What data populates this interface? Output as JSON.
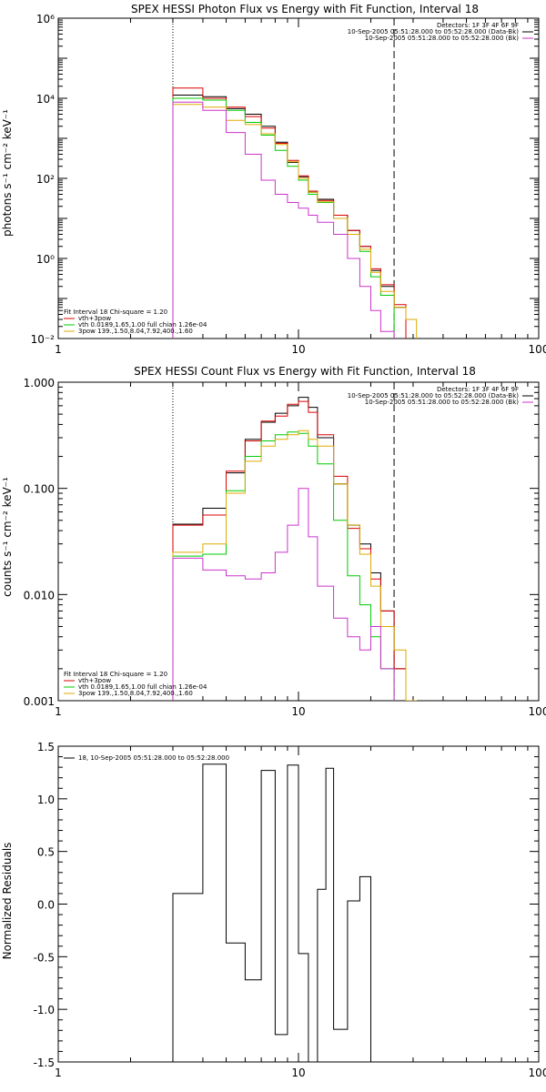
{
  "chart_data": [
    {
      "type": "line",
      "title": "SPEX HESSI Photon Flux vs Energy with Fit Function, Interval 18",
      "ylabel": "photons s⁻¹ cm⁻² keV⁻¹",
      "xlabel": "",
      "xscale": "log",
      "yscale": "log",
      "xlim": [
        1,
        100
      ],
      "ylim": [
        0.01,
        1000000
      ],
      "xticks": [
        {
          "v": 1,
          "t": "1"
        },
        {
          "v": 10,
          "t": "10"
        },
        {
          "v": 100,
          "t": "100"
        }
      ],
      "yticks": [
        {
          "v": 0.01,
          "t": "10⁻²"
        },
        {
          "v": 1,
          "t": "10⁰"
        },
        {
          "v": 100,
          "t": "10²"
        },
        {
          "v": 10000,
          "t": "10⁴"
        },
        {
          "v": 1000000,
          "t": "10⁶"
        }
      ],
      "header_lines": [
        "Detectors: 1F 3F 4F 6F 9F",
        "10-Sep-2005 05:51:28.000 to 05:52:28.000 (Data-Bk)",
        "10-Sep-2005 05:51:28.000 to 05:52:28.000 (Bk)"
      ],
      "header_colors": [
        "",
        "#000000",
        "#cc33cc"
      ],
      "legend": {
        "lines": [
          "Fit Interval 18   Chi-square = 1.20",
          "vth+3pow",
          "vth 0.0189,1.65,1.00  full chian 1.26e-04",
          "3pow 139.,1.50,8.04,7.92,400.,1.60"
        ],
        "colors": [
          "",
          "#dd0000",
          "#00cc00",
          "#ddaa00"
        ]
      },
      "vlines": [
        {
          "x": 3,
          "style": "dotted"
        },
        {
          "x": 25,
          "style": "dashed"
        }
      ],
      "edges": [
        3,
        4,
        5,
        6,
        7,
        8,
        9,
        10,
        11,
        12,
        14,
        16,
        18,
        20,
        22,
        25,
        28,
        31
      ],
      "series": [
        {
          "color": "#000000",
          "values": [
            12000,
            11000,
            5500,
            4000,
            2000,
            800,
            250,
            110,
            45,
            30,
            12,
            5,
            2,
            0.5,
            0.2,
            0.06,
            null
          ]
        },
        {
          "color": "#dd0000",
          "values": [
            18000,
            10000,
            6000,
            3500,
            1800,
            750,
            280,
            115,
            48,
            28,
            12,
            5,
            2,
            0.55,
            0.22,
            0.07,
            null
          ]
        },
        {
          "color": "#00cc00",
          "values": [
            10000,
            9000,
            5000,
            2500,
            1200,
            500,
            200,
            90,
            40,
            25,
            10,
            4,
            1.5,
            0.35,
            0.12,
            0.008,
            null
          ]
        },
        {
          "color": "#ddaa00",
          "values": [
            7000,
            6000,
            2800,
            2200,
            1300,
            700,
            260,
            100,
            45,
            26,
            10,
            4,
            1.7,
            0.45,
            0.15,
            0.06,
            0.03
          ]
        },
        {
          "color": "#cc33cc",
          "values": [
            8000,
            5000,
            1400,
            400,
            90,
            40,
            25,
            18,
            12,
            8,
            4,
            1,
            0.2,
            0.05,
            0.015,
            null,
            null
          ]
        }
      ]
    },
    {
      "type": "line",
      "title": "SPEX HESSI Count Flux vs Energy with Fit Function, Interval 18",
      "ylabel": "counts s⁻¹ cm⁻² keV⁻¹",
      "xlabel": "",
      "xscale": "log",
      "yscale": "log",
      "xlim": [
        1,
        100
      ],
      "ylim": [
        0.001,
        1
      ],
      "xticks": [
        {
          "v": 1,
          "t": "1"
        },
        {
          "v": 10,
          "t": "10"
        },
        {
          "v": 100,
          "t": "100"
        }
      ],
      "yticks": [
        {
          "v": 0.001,
          "t": "0.001"
        },
        {
          "v": 0.01,
          "t": "0.010"
        },
        {
          "v": 0.1,
          "t": "0.100"
        },
        {
          "v": 1,
          "t": "1.000"
        }
      ],
      "header_lines": [
        "Detectors: 1F 3F 4F 6F 9F",
        "10-Sep-2005 05:51:28.000 to 05:52:28.000 (Data-Bk)",
        "10-Sep-2005 05:51:28.000 to 05:52:28.000 (Bk)"
      ],
      "header_colors": [
        "",
        "#000000",
        "#cc33cc"
      ],
      "legend": {
        "lines": [
          "Fit Interval 18   Chi-square = 1.20",
          "vth+3pow",
          "vth 0.0189,1.65,1.00  full chian 1.26e-04",
          "3pow 139.,1.50,8.04,7.92,400.,1.60"
        ],
        "colors": [
          "",
          "#dd0000",
          "#00cc00",
          "#ddaa00"
        ]
      },
      "vlines": [
        {
          "x": 3,
          "style": "dotted"
        },
        {
          "x": 25,
          "style": "dashed"
        }
      ],
      "edges": [
        3,
        4,
        5,
        6,
        7,
        8,
        9,
        10,
        11,
        12,
        14,
        16,
        18,
        20,
        22,
        25,
        28,
        31
      ],
      "series": [
        {
          "color": "#000000",
          "values": [
            0.046,
            0.065,
            0.14,
            0.29,
            0.42,
            0.51,
            0.6,
            0.72,
            0.58,
            0.3,
            0.11,
            0.045,
            0.03,
            0.016,
            0.007,
            0.002,
            null
          ]
        },
        {
          "color": "#dd0000",
          "values": [
            0.045,
            0.056,
            0.145,
            0.28,
            0.43,
            0.48,
            0.62,
            0.66,
            0.52,
            0.32,
            0.13,
            0.042,
            0.027,
            0.014,
            0.007,
            0.002,
            null
          ]
        },
        {
          "color": "#00cc00",
          "values": [
            0.023,
            0.024,
            0.095,
            0.2,
            0.28,
            0.32,
            0.34,
            0.33,
            0.25,
            0.17,
            0.05,
            0.015,
            0.008,
            0.004,
            0.002,
            0.0005,
            null
          ]
        },
        {
          "color": "#ddaa00",
          "values": [
            0.025,
            0.03,
            0.09,
            0.18,
            0.25,
            0.29,
            0.32,
            0.35,
            0.29,
            0.25,
            0.11,
            0.045,
            0.024,
            0.012,
            0.005,
            0.003,
            0.001
          ]
        },
        {
          "color": "#cc33cc",
          "values": [
            0.022,
            0.017,
            0.015,
            0.014,
            0.016,
            0.025,
            0.045,
            0.1,
            0.035,
            0.012,
            0.006,
            0.004,
            0.003,
            0.005,
            0.002,
            null,
            null
          ]
        }
      ]
    },
    {
      "type": "line",
      "title": "",
      "ylabel": "Normalized Residuals",
      "xlabel": "",
      "xscale": "log",
      "yscale": "linear",
      "xlim": [
        1,
        100
      ],
      "ylim": [
        -1.5,
        1.5
      ],
      "xticks": [
        {
          "v": 1,
          "t": "1"
        },
        {
          "v": 10,
          "t": "10"
        },
        {
          "v": 100,
          "t": "100"
        }
      ],
      "yticks": [
        {
          "v": 1.5,
          "t": "1.5"
        },
        {
          "v": 1.0,
          "t": "1.0"
        },
        {
          "v": 0.5,
          "t": "0.5"
        },
        {
          "v": 0,
          "t": "0.0"
        },
        {
          "v": -0.5,
          "t": "-0.5"
        },
        {
          "v": -1.0,
          "t": "-1.0"
        },
        {
          "v": -1.5,
          "t": "-1.5"
        }
      ],
      "legend": {
        "lines": [
          "18, 10-Sep-2005 05:51:28.000 to 05:52:28.000"
        ],
        "colors": [
          "#000000"
        ]
      },
      "vlines": [],
      "edges": [
        3,
        4,
        5,
        6,
        7,
        8,
        9,
        10,
        11,
        12,
        13,
        14,
        16,
        18,
        20,
        22,
        25
      ],
      "series": [
        {
          "color": "#000000",
          "values": [
            0.1,
            1.33,
            -0.37,
            -0.72,
            1.27,
            -1.24,
            1.32,
            -0.47,
            -1.5,
            0.14,
            1.29,
            -1.19,
            0.03,
            0.26,
            null,
            null
          ]
        }
      ]
    }
  ]
}
